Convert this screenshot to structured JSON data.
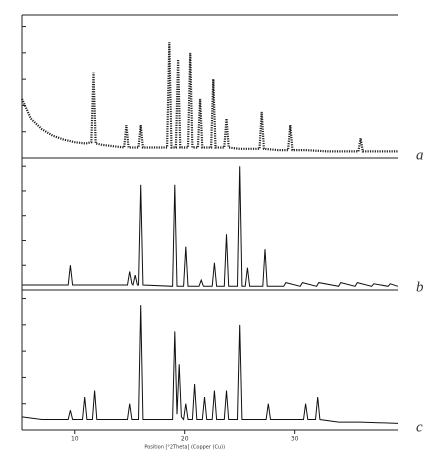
{
  "chart_data": [
    {
      "type": "line",
      "label": "a",
      "linestyle": "dotted",
      "color": "#222222",
      "x": [
        5.2,
        6,
        7,
        8,
        9,
        10,
        11,
        11.5,
        11.7,
        11.9,
        12.5,
        13.5,
        14.5,
        14.7,
        14.9,
        15.8,
        16.0,
        16.2,
        17.5,
        18.4,
        18.6,
        18.8,
        19.2,
        19.4,
        19.6,
        20.3,
        20.5,
        20.7,
        21.2,
        21.4,
        21.6,
        22.4,
        22.6,
        22.8,
        23.6,
        23.8,
        24.0,
        25,
        26,
        26.8,
        27.0,
        27.2,
        28.5,
        29.4,
        29.6,
        29.8,
        31,
        33,
        35.8,
        36.0,
        36.2,
        38,
        39.4
      ],
      "values": [
        45,
        30,
        22,
        17,
        14,
        12,
        11,
        12,
        65,
        11,
        10,
        9,
        8,
        25,
        8,
        8,
        25,
        8,
        8,
        8,
        88,
        8,
        8,
        75,
        8,
        8,
        80,
        8,
        8,
        45,
        8,
        8,
        60,
        8,
        8,
        30,
        8,
        7,
        7,
        7,
        35,
        7,
        6,
        6,
        25,
        6,
        6,
        5,
        5,
        15,
        5,
        5,
        5
      ],
      "xlim": [
        5.2,
        39.4
      ],
      "ylim": [
        0,
        105
      ],
      "yticks": [
        0,
        20,
        40,
        60,
        80,
        100
      ]
    },
    {
      "type": "line",
      "label": "b",
      "linestyle": "solid",
      "color": "#111111",
      "x": [
        5.2,
        9.4,
        9.6,
        9.8,
        14.8,
        15.0,
        15.2,
        15.3,
        15.5,
        15.7,
        15.8,
        16.0,
        16.2,
        18.9,
        19.1,
        19.3,
        19.9,
        20.1,
        20.3,
        21.3,
        21.5,
        21.7,
        22.5,
        22.7,
        22.9,
        23.6,
        23.8,
        24.0,
        24.8,
        25.0,
        25.2,
        25.5,
        25.7,
        25.9,
        27.1,
        27.3,
        27.5,
        29.0,
        29.2,
        30.5,
        30.7,
        32.0,
        32.2,
        34.0,
        34.2,
        35.5,
        35.7,
        37.0,
        37.2,
        38.5,
        38.7,
        39.4
      ],
      "values": [
        4,
        4,
        20,
        4,
        4,
        15,
        5,
        4,
        12,
        4,
        4,
        85,
        4,
        3,
        85,
        3,
        3,
        35,
        3,
        3,
        8,
        3,
        3,
        22,
        3,
        3,
        45,
        3,
        3,
        100,
        3,
        3,
        18,
        3,
        3,
        33,
        3,
        3,
        6,
        3,
        6,
        3,
        6,
        3,
        6,
        3,
        6,
        3,
        5,
        3,
        5,
        3
      ],
      "xlim": [
        5.2,
        39.4
      ],
      "ylim": [
        0,
        105
      ],
      "yticks": [
        0,
        20,
        40,
        60,
        80,
        100
      ]
    },
    {
      "type": "line",
      "label": "c",
      "linestyle": "solid",
      "color": "#111111",
      "x": [
        5.2,
        7.0,
        9.4,
        9.6,
        9.8,
        10.7,
        10.9,
        11.1,
        11.6,
        11.8,
        12.0,
        14.8,
        15.0,
        15.2,
        15.8,
        16.0,
        16.2,
        18.9,
        19.1,
        19.3,
        19.5,
        19.7,
        19.9,
        20.1,
        20.3,
        20.7,
        20.9,
        21.1,
        21.6,
        21.8,
        22.0,
        22.5,
        22.7,
        22.9,
        23.6,
        23.8,
        24.0,
        24.8,
        25.0,
        25.2,
        27.4,
        27.6,
        27.8,
        30.8,
        31.0,
        31.2,
        31.9,
        32.1,
        32.3,
        34.0,
        36.0,
        39.4
      ],
      "values": [
        10,
        8,
        8,
        15,
        8,
        8,
        25,
        8,
        8,
        30,
        8,
        8,
        20,
        8,
        8,
        95,
        8,
        8,
        75,
        12,
        50,
        10,
        8,
        20,
        8,
        8,
        35,
        8,
        8,
        25,
        8,
        8,
        30,
        8,
        8,
        30,
        8,
        8,
        80,
        8,
        8,
        20,
        8,
        8,
        20,
        8,
        8,
        25,
        8,
        6,
        6,
        5
      ],
      "xlim": [
        5.2,
        39.4
      ],
      "ylim": [
        0,
        105
      ],
      "yticks": [
        0,
        20,
        40,
        60,
        80,
        100
      ],
      "xticks": [
        10,
        20,
        30
      ],
      "x_label": "Position [°2Theta] (Copper (Cu))"
    }
  ]
}
